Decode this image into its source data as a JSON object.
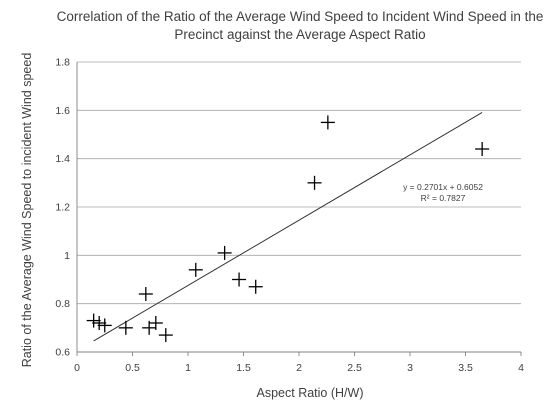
{
  "chart_data": {
    "type": "scatter",
    "title_lines": [
      "Correlation of the Ratio of the Average Wind Speed to Incident Wind Speed in the",
      "Precinct against the Average Aspect Ratio"
    ],
    "xlabel": "Aspect Ratio (H/W)",
    "ylabel": "Ratio of the Average Wind Speed to incident Wind speed",
    "xlim": [
      0,
      4
    ],
    "ylim": [
      0.6,
      1.8
    ],
    "x_ticks": [
      0,
      0.5,
      1,
      1.5,
      2,
      2.5,
      3,
      3.5,
      4
    ],
    "x_tick_labels": [
      "0",
      "0.5",
      "1",
      "1.5",
      "2",
      "2.5",
      "3",
      "3.5",
      "4"
    ],
    "y_ticks": [
      0.6,
      0.8,
      1.0,
      1.2,
      1.4,
      1.6,
      1.8
    ],
    "y_tick_labels": [
      "0.6",
      "0.8",
      "1",
      "1.2",
      "1.4",
      "1.6",
      "1.8"
    ],
    "grid": "horizontal",
    "marker": "plus",
    "points": [
      {
        "x": 0.15,
        "y": 0.73
      },
      {
        "x": 0.2,
        "y": 0.72
      },
      {
        "x": 0.25,
        "y": 0.71
      },
      {
        "x": 0.44,
        "y": 0.7
      },
      {
        "x": 0.62,
        "y": 0.84
      },
      {
        "x": 0.65,
        "y": 0.7
      },
      {
        "x": 0.71,
        "y": 0.72
      },
      {
        "x": 0.8,
        "y": 0.67
      },
      {
        "x": 1.07,
        "y": 0.94
      },
      {
        "x": 1.33,
        "y": 1.01
      },
      {
        "x": 1.46,
        "y": 0.9
      },
      {
        "x": 1.61,
        "y": 0.87
      },
      {
        "x": 2.14,
        "y": 1.3
      },
      {
        "x": 2.26,
        "y": 1.55
      },
      {
        "x": 3.65,
        "y": 1.44
      }
    ],
    "trendline": {
      "type": "linear",
      "slope": 0.2701,
      "intercept": 0.6052,
      "x_start": 0.15,
      "x_end": 3.65,
      "equation": "y = 0.2701x + 0.6052",
      "r_squared": "R² = 0.7827"
    },
    "colors": {
      "marker": "#000000",
      "trendline": "#333333",
      "grid": "#a6a6a6",
      "text": "#404040"
    }
  }
}
